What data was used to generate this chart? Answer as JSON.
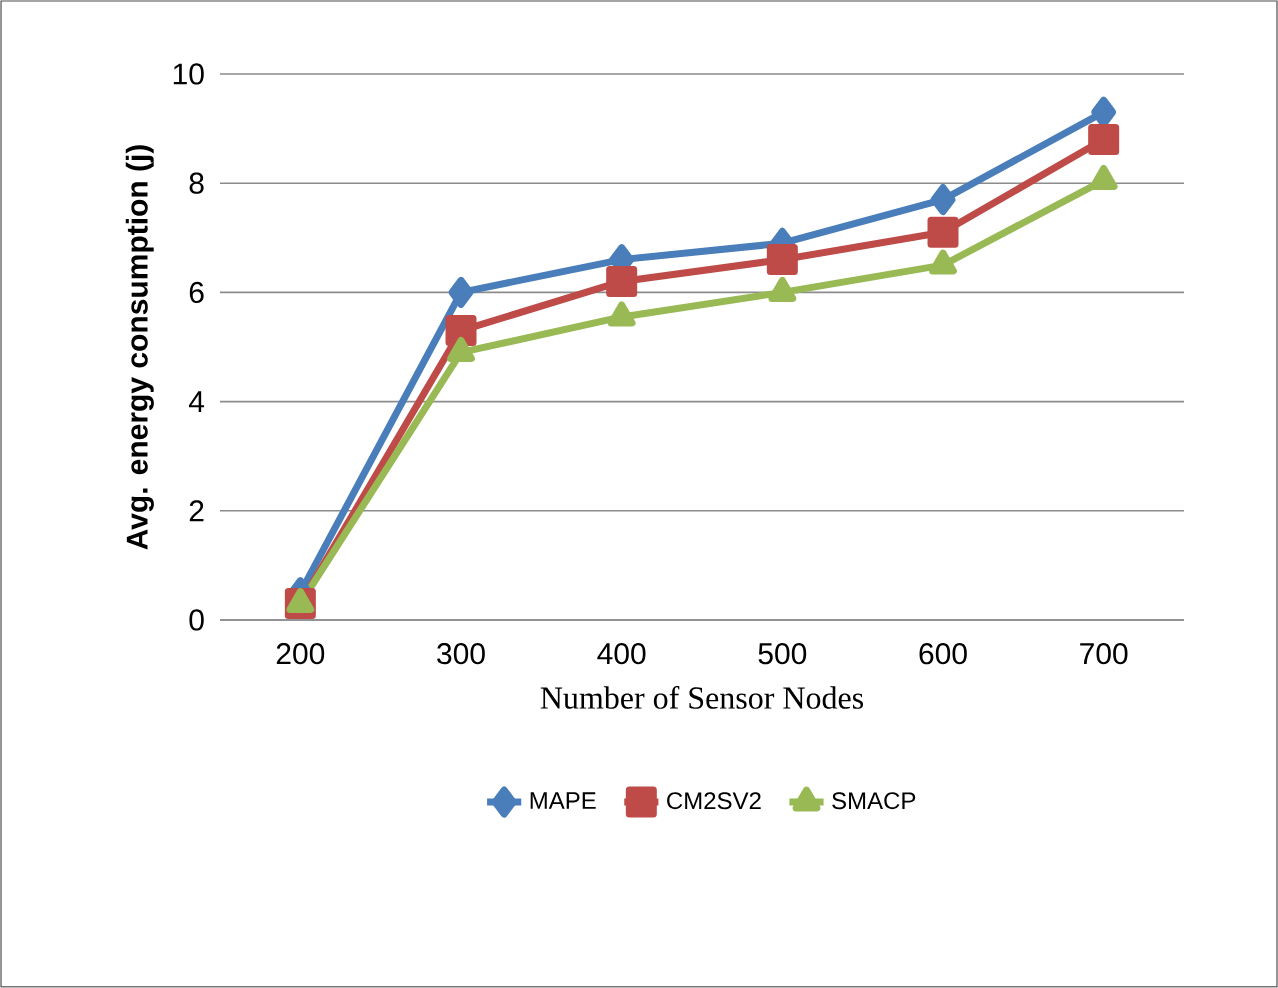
{
  "chart_data": {
    "type": "line",
    "xlabel": "Number of Sensor Nodes",
    "ylabel": "Avg. energy consumption (j)",
    "categories": [
      "200",
      "300",
      "400",
      "500",
      "600",
      "700"
    ],
    "series": [
      {
        "name": "MAPE",
        "color": "#4a7ebb",
        "marker": "diamond",
        "values": [
          0.5,
          6.0,
          6.6,
          6.9,
          7.7,
          9.3
        ]
      },
      {
        "name": "CM2SV2",
        "color": "#be4b48",
        "marker": "square",
        "values": [
          0.3,
          5.3,
          6.2,
          6.6,
          7.1,
          8.8
        ]
      },
      {
        "name": "SMACP",
        "color": "#98b954",
        "marker": "triangle",
        "values": [
          0.3,
          4.9,
          5.55,
          6.0,
          6.5,
          8.05
        ]
      }
    ],
    "ylim": [
      0,
      10
    ],
    "yticks": [
      0,
      2,
      4,
      6,
      8,
      10
    ],
    "grid": "y",
    "legend": "bottom",
    "line_style": "solid"
  }
}
